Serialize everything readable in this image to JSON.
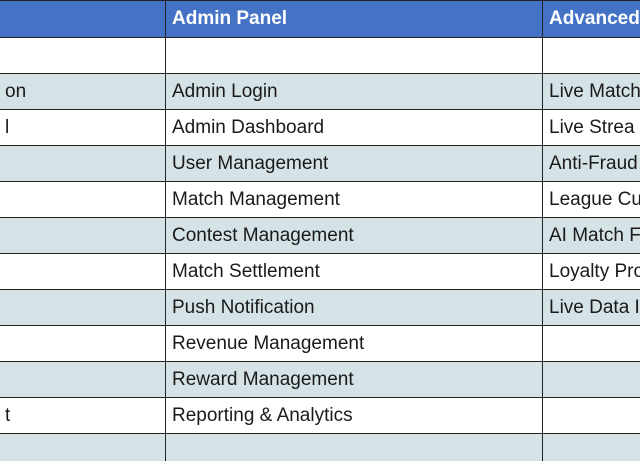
{
  "headers": [
    "",
    "Admin Panel",
    "Advanced"
  ],
  "rows": [
    [
      "",
      "",
      ""
    ],
    [
      "on",
      "Admin Login",
      "Live Match"
    ],
    [
      "l",
      "Admin Dashboard",
      "Live Strea"
    ],
    [
      "",
      "User Management",
      "Anti-Fraud"
    ],
    [
      "",
      "Match Management",
      "League Cu"
    ],
    [
      "",
      "Contest Management",
      "AI Match F"
    ],
    [
      "",
      "Match Settlement",
      "Loyalty Pro"
    ],
    [
      "",
      "Push Notification",
      "Live Data I"
    ],
    [
      "",
      "Revenue Management",
      ""
    ],
    [
      "",
      "Reward Management",
      ""
    ],
    [
      "t",
      "Reporting & Analytics",
      ""
    ],
    [
      "",
      "",
      ""
    ]
  ],
  "colors": {
    "header_bg": "#4473c5",
    "header_text": "#ffffff",
    "band_bg": "#d6e3e6",
    "plain_bg": "#ffffff",
    "border": "#222222"
  }
}
